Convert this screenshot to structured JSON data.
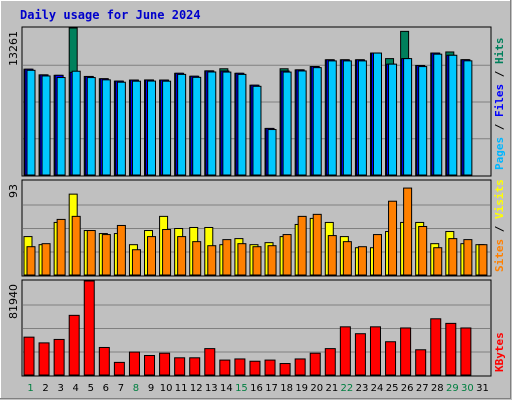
{
  "chart_data": {
    "type": "bar",
    "title": "Daily usage for June 2024",
    "categories": [
      "1",
      "2",
      "3",
      "4",
      "5",
      "6",
      "7",
      "8",
      "9",
      "10",
      "11",
      "12",
      "13",
      "14",
      "15",
      "16",
      "17",
      "18",
      "19",
      "20",
      "21",
      "22",
      "23",
      "24",
      "25",
      "26",
      "27",
      "28",
      "29",
      "30",
      "31"
    ],
    "weekend_days": [
      "1",
      "8",
      "15",
      "22",
      "29",
      "30"
    ],
    "weekend_color": "#007f40",
    "panels": [
      {
        "name": "traffic",
        "axis_max_label": "13261",
        "ylim": [
          0,
          13261
        ],
        "side_labels": [
          {
            "text": "Pages",
            "color": "#00b6ff"
          },
          {
            "text": " / ",
            "color": "#000000"
          },
          {
            "text": "Files",
            "color": "#0000ff"
          },
          {
            "text": " / ",
            "color": "#000000"
          },
          {
            "text": "Hits",
            "color": "#00805c"
          }
        ],
        "series": [
          {
            "name": "Hits",
            "color": "#00805c",
            "values": [
              9544,
              9033,
              8992,
              13261,
              8889,
              8684,
              8470,
              8563,
              8574,
              8563,
              9175,
              8909,
              9393,
              9585,
              9175,
              8100,
              4201,
              9585,
              9485,
              9785,
              10393,
              10393,
              10393,
              11000,
              10500,
              12958,
              9880,
              11000,
              11100,
              10400,
              0
            ]
          },
          {
            "name": "Files",
            "color": "#0000ff",
            "values": [
              9544,
              9033,
              8992,
              9261,
              8889,
              8684,
              8470,
              8563,
              8574,
              8563,
              9175,
              8909,
              9393,
              9385,
              9175,
              8100,
              4201,
              9385,
              9485,
              9785,
              10393,
              10393,
              10393,
              11000,
              10000,
              10500,
              9880,
              11000,
              10800,
              10400,
              0
            ]
          },
          {
            "name": "Pages",
            "color": "#00c8ff",
            "values": [
              9444,
              8933,
              8792,
              9361,
              8789,
              8584,
              8370,
              8463,
              8474,
              8463,
              9075,
              8809,
              9293,
              9285,
              9075,
              8000,
              4101,
              9285,
              9385,
              9685,
              10293,
              10293,
              10293,
              11000,
              10000,
              10500,
              9780,
              10900,
              10800,
              10300,
              0
            ]
          }
        ]
      },
      {
        "name": "visits",
        "axis_max_label": "93",
        "ylim": [
          0,
          93
        ],
        "side_labels": [
          {
            "text": "Sites",
            "color": "#ff8000"
          },
          {
            "text": " / ",
            "color": "#000000"
          },
          {
            "text": "Visits",
            "color": "#ffff00"
          }
        ],
        "series": [
          {
            "name": "Visits",
            "color": "#ffff00",
            "values": [
              38,
              30,
              52,
              80,
              44,
              41,
              41,
              30,
              44,
              58,
              46,
              47,
              47,
              30,
              36,
              30,
              32,
              38,
              50,
              56,
              52,
              38,
              27,
              27,
              43,
              52,
              52,
              31,
              43,
              31,
              30
            ]
          },
          {
            "name": "Sites",
            "color": "#ff8000",
            "values": [
              28,
              31,
              55,
              58,
              44,
              40,
              49,
              25,
              38,
              45,
              38,
              33,
              29,
              35,
              31,
              28,
              29,
              40,
              58,
              60,
              39,
              33,
              28,
              40,
              73,
              86,
              48,
              27,
              36,
              35,
              30
            ]
          }
        ]
      },
      {
        "name": "kbytes",
        "axis_max_label": "81940",
        "ylim": [
          0,
          81940
        ],
        "side_labels": [
          {
            "text": "KBytes",
            "color": "#ff0000"
          }
        ],
        "series": [
          {
            "name": "KBytes",
            "color": "#ff0000",
            "values": [
              33000,
              28000,
              31000,
              52000,
              81940,
              24000,
              11000,
              20000,
              17000,
              19000,
              15000,
              15000,
              23000,
              13000,
              14000,
              12000,
              13000,
              10000,
              14000,
              19000,
              23000,
              42000,
              36000,
              42000,
              29000,
              41000,
              22000,
              49000,
              45000,
              41000,
              0
            ]
          }
        ]
      }
    ]
  }
}
